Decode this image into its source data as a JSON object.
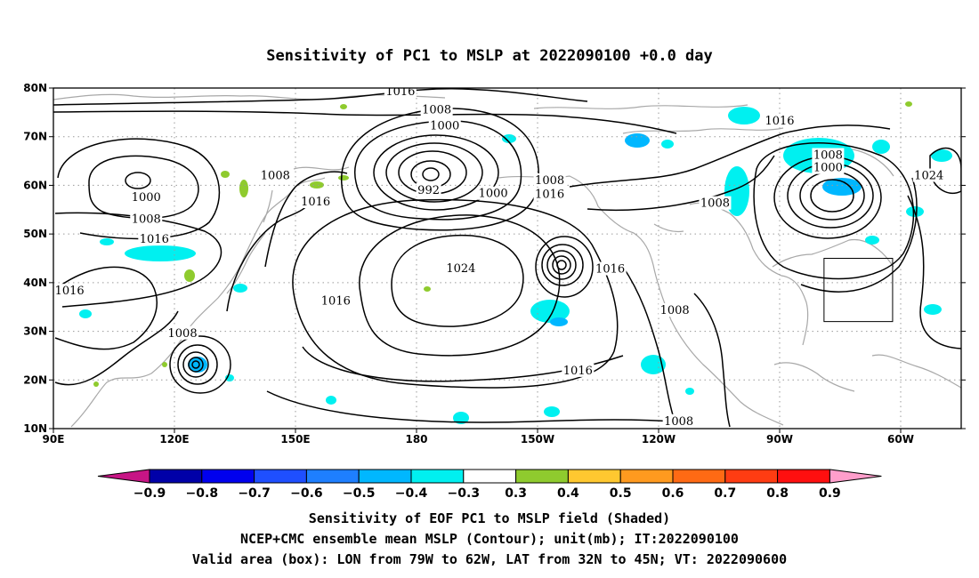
{
  "title": "Sensitivity of PC1 to MSLP at 2022090100 +0.0 day",
  "map": {
    "lat_ticks": [
      "80N",
      "70N",
      "60N",
      "50N",
      "40N",
      "30N",
      "20N",
      "10N"
    ],
    "lon_ticks": [
      "90E",
      "120E",
      "150E",
      "180",
      "150W",
      "120W",
      "90W",
      "60W"
    ],
    "lon_range": [
      90,
      315
    ],
    "lat_range": [
      10,
      80
    ],
    "gridlines": true,
    "valid_box": {
      "lon": [
        281,
        298
      ],
      "lat": [
        32,
        45
      ]
    }
  },
  "contour_labels": [
    {
      "text": "1016",
      "lon": 176,
      "lat": 79.3
    },
    {
      "text": "1008",
      "lon": 185,
      "lat": 75.5
    },
    {
      "text": "1000",
      "lon": 187,
      "lat": 72.2
    },
    {
      "text": "992",
      "lon": 183,
      "lat": 59.0
    },
    {
      "text": "1000",
      "lon": 199,
      "lat": 58.3
    },
    {
      "text": "1008",
      "lon": 213,
      "lat": 61.0
    },
    {
      "text": "1016",
      "lon": 213,
      "lat": 58.2
    },
    {
      "text": "1016",
      "lon": 270,
      "lat": 73.2
    },
    {
      "text": "1008",
      "lon": 282,
      "lat": 66.2
    },
    {
      "text": "1000",
      "lon": 282,
      "lat": 63.6
    },
    {
      "text": "1024",
      "lon": 307,
      "lat": 62.0
    },
    {
      "text": "1008",
      "lon": 254,
      "lat": 56.3
    },
    {
      "text": "1008",
      "lon": 145,
      "lat": 62.0
    },
    {
      "text": "1016",
      "lon": 155,
      "lat": 56.6
    },
    {
      "text": "1000",
      "lon": 113,
      "lat": 57.5
    },
    {
      "text": "1008",
      "lon": 113,
      "lat": 53.0
    },
    {
      "text": "1016",
      "lon": 115,
      "lat": 48.9
    },
    {
      "text": "1016",
      "lon": 94,
      "lat": 38.3
    },
    {
      "text": "1024",
      "lon": 191,
      "lat": 42.9
    },
    {
      "text": "1016",
      "lon": 160,
      "lat": 36.2
    },
    {
      "text": "1016",
      "lon": 228,
      "lat": 42.8
    },
    {
      "text": "1008",
      "lon": 244,
      "lat": 34.3
    },
    {
      "text": "1008",
      "lon": 122,
      "lat": 29.6
    },
    {
      "text": "1016",
      "lon": 220,
      "lat": 21.9
    },
    {
      "text": "1008",
      "lon": 245,
      "lat": 11.5
    }
  ],
  "colorbar": {
    "labels": [
      "-0.9",
      "-0.8",
      "-0.7",
      "-0.6",
      "-0.5",
      "-0.4",
      "-0.3",
      "0.3",
      "0.4",
      "0.5",
      "0.6",
      "0.7",
      "0.8",
      "0.9"
    ],
    "colors": [
      "#c71585",
      "#0000a8",
      "#0000ee",
      "#1f4fff",
      "#1e7fff",
      "#00b7ff",
      "#00f0f0",
      "#ffffff",
      "#8fcb2e",
      "#ffc830",
      "#ff9a1f",
      "#ff6a14",
      "#ff3c12",
      "#ff0f0f",
      "#ff9ecb"
    ]
  },
  "footer": [
    "Sensitivity of EOF PC1 to MSLP field (Shaded)",
    "NCEP+CMC ensemble mean MSLP (Contour); unit(mb); IT:2022090100",
    "Valid area (box): LON from 79W to 62W, LAT from 32N to 45N; VT: 2022090600"
  ]
}
